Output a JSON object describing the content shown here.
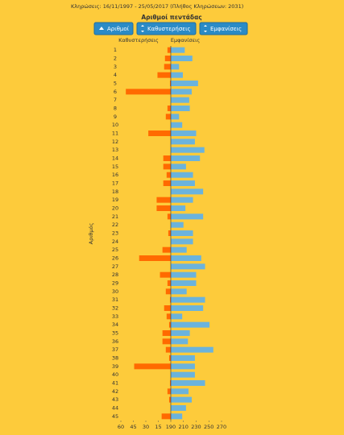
{
  "chart_data": {
    "type": "bar",
    "subtitle": "Κληρώσεις:    16/11/1997 - 25/05/2017  (Πλήθος Κληρώσεων: 2031)",
    "title": "Αριθμοί πεντάδας",
    "y_label": "Αριθμός",
    "categories": [
      "1",
      "2",
      "3",
      "4",
      "5",
      "6",
      "7",
      "8",
      "9",
      "10",
      "11",
      "12",
      "13",
      "14",
      "15",
      "16",
      "17",
      "18",
      "19",
      "20",
      "21",
      "22",
      "23",
      "24",
      "25",
      "26",
      "27",
      "28",
      "29",
      "30",
      "31",
      "32",
      "33",
      "34",
      "35",
      "36",
      "37",
      "38",
      "39",
      "40",
      "41",
      "42",
      "43",
      "44",
      "45"
    ],
    "series": [
      {
        "name": "Καθυστερήσεις",
        "color": "#ff6a00",
        "axis": "x",
        "values": [
          4,
          7,
          8,
          16,
          1,
          54,
          0,
          4,
          6,
          0,
          27,
          0,
          0,
          9,
          9,
          5,
          9,
          0,
          17,
          17,
          4,
          0,
          3,
          0,
          10,
          38,
          0,
          13,
          4,
          6,
          1,
          8,
          5,
          2,
          10,
          10,
          6,
          2,
          44,
          0,
          1,
          4,
          2,
          0,
          11
        ]
      },
      {
        "name": "Εμφανίσεις",
        "color": "#6bb3dc",
        "axis": "x2",
        "values": [
          212,
          224,
          203,
          209,
          233,
          223,
          219,
          220,
          203,
          208,
          230,
          228,
          243,
          236,
          214,
          225,
          228,
          241,
          225,
          213,
          241,
          210,
          225,
          225,
          215,
          238,
          244,
          230,
          230,
          215,
          244,
          241,
          208,
          251,
          220,
          217,
          257,
          228,
          228,
          228,
          244,
          218,
          223,
          214,
          208
        ]
      }
    ],
    "xlim": [
      60,
      0
    ],
    "xticks": [
      60,
      45,
      30,
      15
    ],
    "x2lim": [
      190,
      270
    ],
    "x2ticks": [
      190,
      210,
      230,
      250,
      270
    ]
  },
  "buttons": [
    "Αριθμοί",
    "Καθυστερήσεις",
    "Εμφανίσεις"
  ]
}
